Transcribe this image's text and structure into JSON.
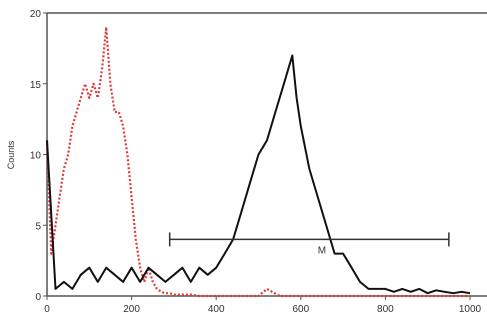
{
  "chart_data": {
    "type": "line",
    "title": "",
    "xlabel": "",
    "ylabel": "Counts",
    "xlim": [
      0,
      1000
    ],
    "ylim": [
      0,
      20
    ],
    "x_ticks": [
      0,
      200,
      400,
      600,
      800,
      1000
    ],
    "x_tick_labels": [
      "0",
      "200",
      "400",
      "600",
      "800",
      "1000"
    ],
    "y_ticks": [
      0,
      5,
      10,
      15,
      20
    ],
    "y_tick_labels": [
      "0",
      "5",
      "10",
      "15",
      "20"
    ],
    "grid": false,
    "series": [
      {
        "color": "#e03a3a",
        "style": "dotted",
        "x": [
          0,
          10,
          20,
          30,
          40,
          50,
          60,
          70,
          80,
          90,
          100,
          110,
          120,
          130,
          140,
          150,
          160,
          170,
          180,
          190,
          200,
          210,
          220,
          230,
          240,
          250,
          260,
          270,
          280,
          290,
          300,
          320,
          340,
          360,
          380,
          400,
          450,
          500,
          520,
          550,
          600,
          700,
          800,
          900,
          1000
        ],
        "values": [
          11,
          3,
          5,
          7,
          9,
          10,
          12,
          13,
          14,
          15,
          14,
          15,
          14,
          16,
          19,
          15,
          13,
          13,
          12,
          10,
          7,
          4,
          2,
          1,
          2,
          1,
          0.5,
          0.3,
          0.2,
          0.2,
          0.1,
          0.1,
          0.1,
          0,
          0,
          0,
          0,
          0,
          0.5,
          0,
          0,
          0,
          0,
          0,
          0
        ]
      },
      {
        "color": "#111111",
        "style": "solid",
        "x": [
          0,
          20,
          40,
          60,
          80,
          100,
          120,
          140,
          160,
          180,
          200,
          220,
          240,
          260,
          280,
          300,
          320,
          340,
          360,
          380,
          400,
          420,
          440,
          460,
          480,
          500,
          520,
          540,
          560,
          570,
          580,
          590,
          600,
          620,
          640,
          660,
          680,
          700,
          720,
          740,
          760,
          780,
          800,
          820,
          840,
          860,
          880,
          900,
          920,
          940,
          960,
          980,
          1000
        ],
        "values": [
          11,
          0.5,
          1,
          0.5,
          1.5,
          2,
          1,
          2,
          1.5,
          1,
          2,
          1,
          2,
          1.5,
          1,
          1.5,
          2,
          1,
          2,
          1.5,
          2,
          3,
          4,
          6,
          8,
          10,
          11,
          13,
          15,
          16,
          17,
          14,
          12,
          9,
          7,
          5,
          3,
          3,
          2,
          1,
          0.5,
          0.5,
          0.5,
          0.3,
          0.5,
          0.3,
          0.5,
          0.2,
          0.4,
          0.3,
          0.2,
          0.3,
          0.2
        ]
      }
    ],
    "marker_bar": {
      "x_start": 290,
      "x_end": 950,
      "y": 4,
      "label": "M"
    }
  }
}
